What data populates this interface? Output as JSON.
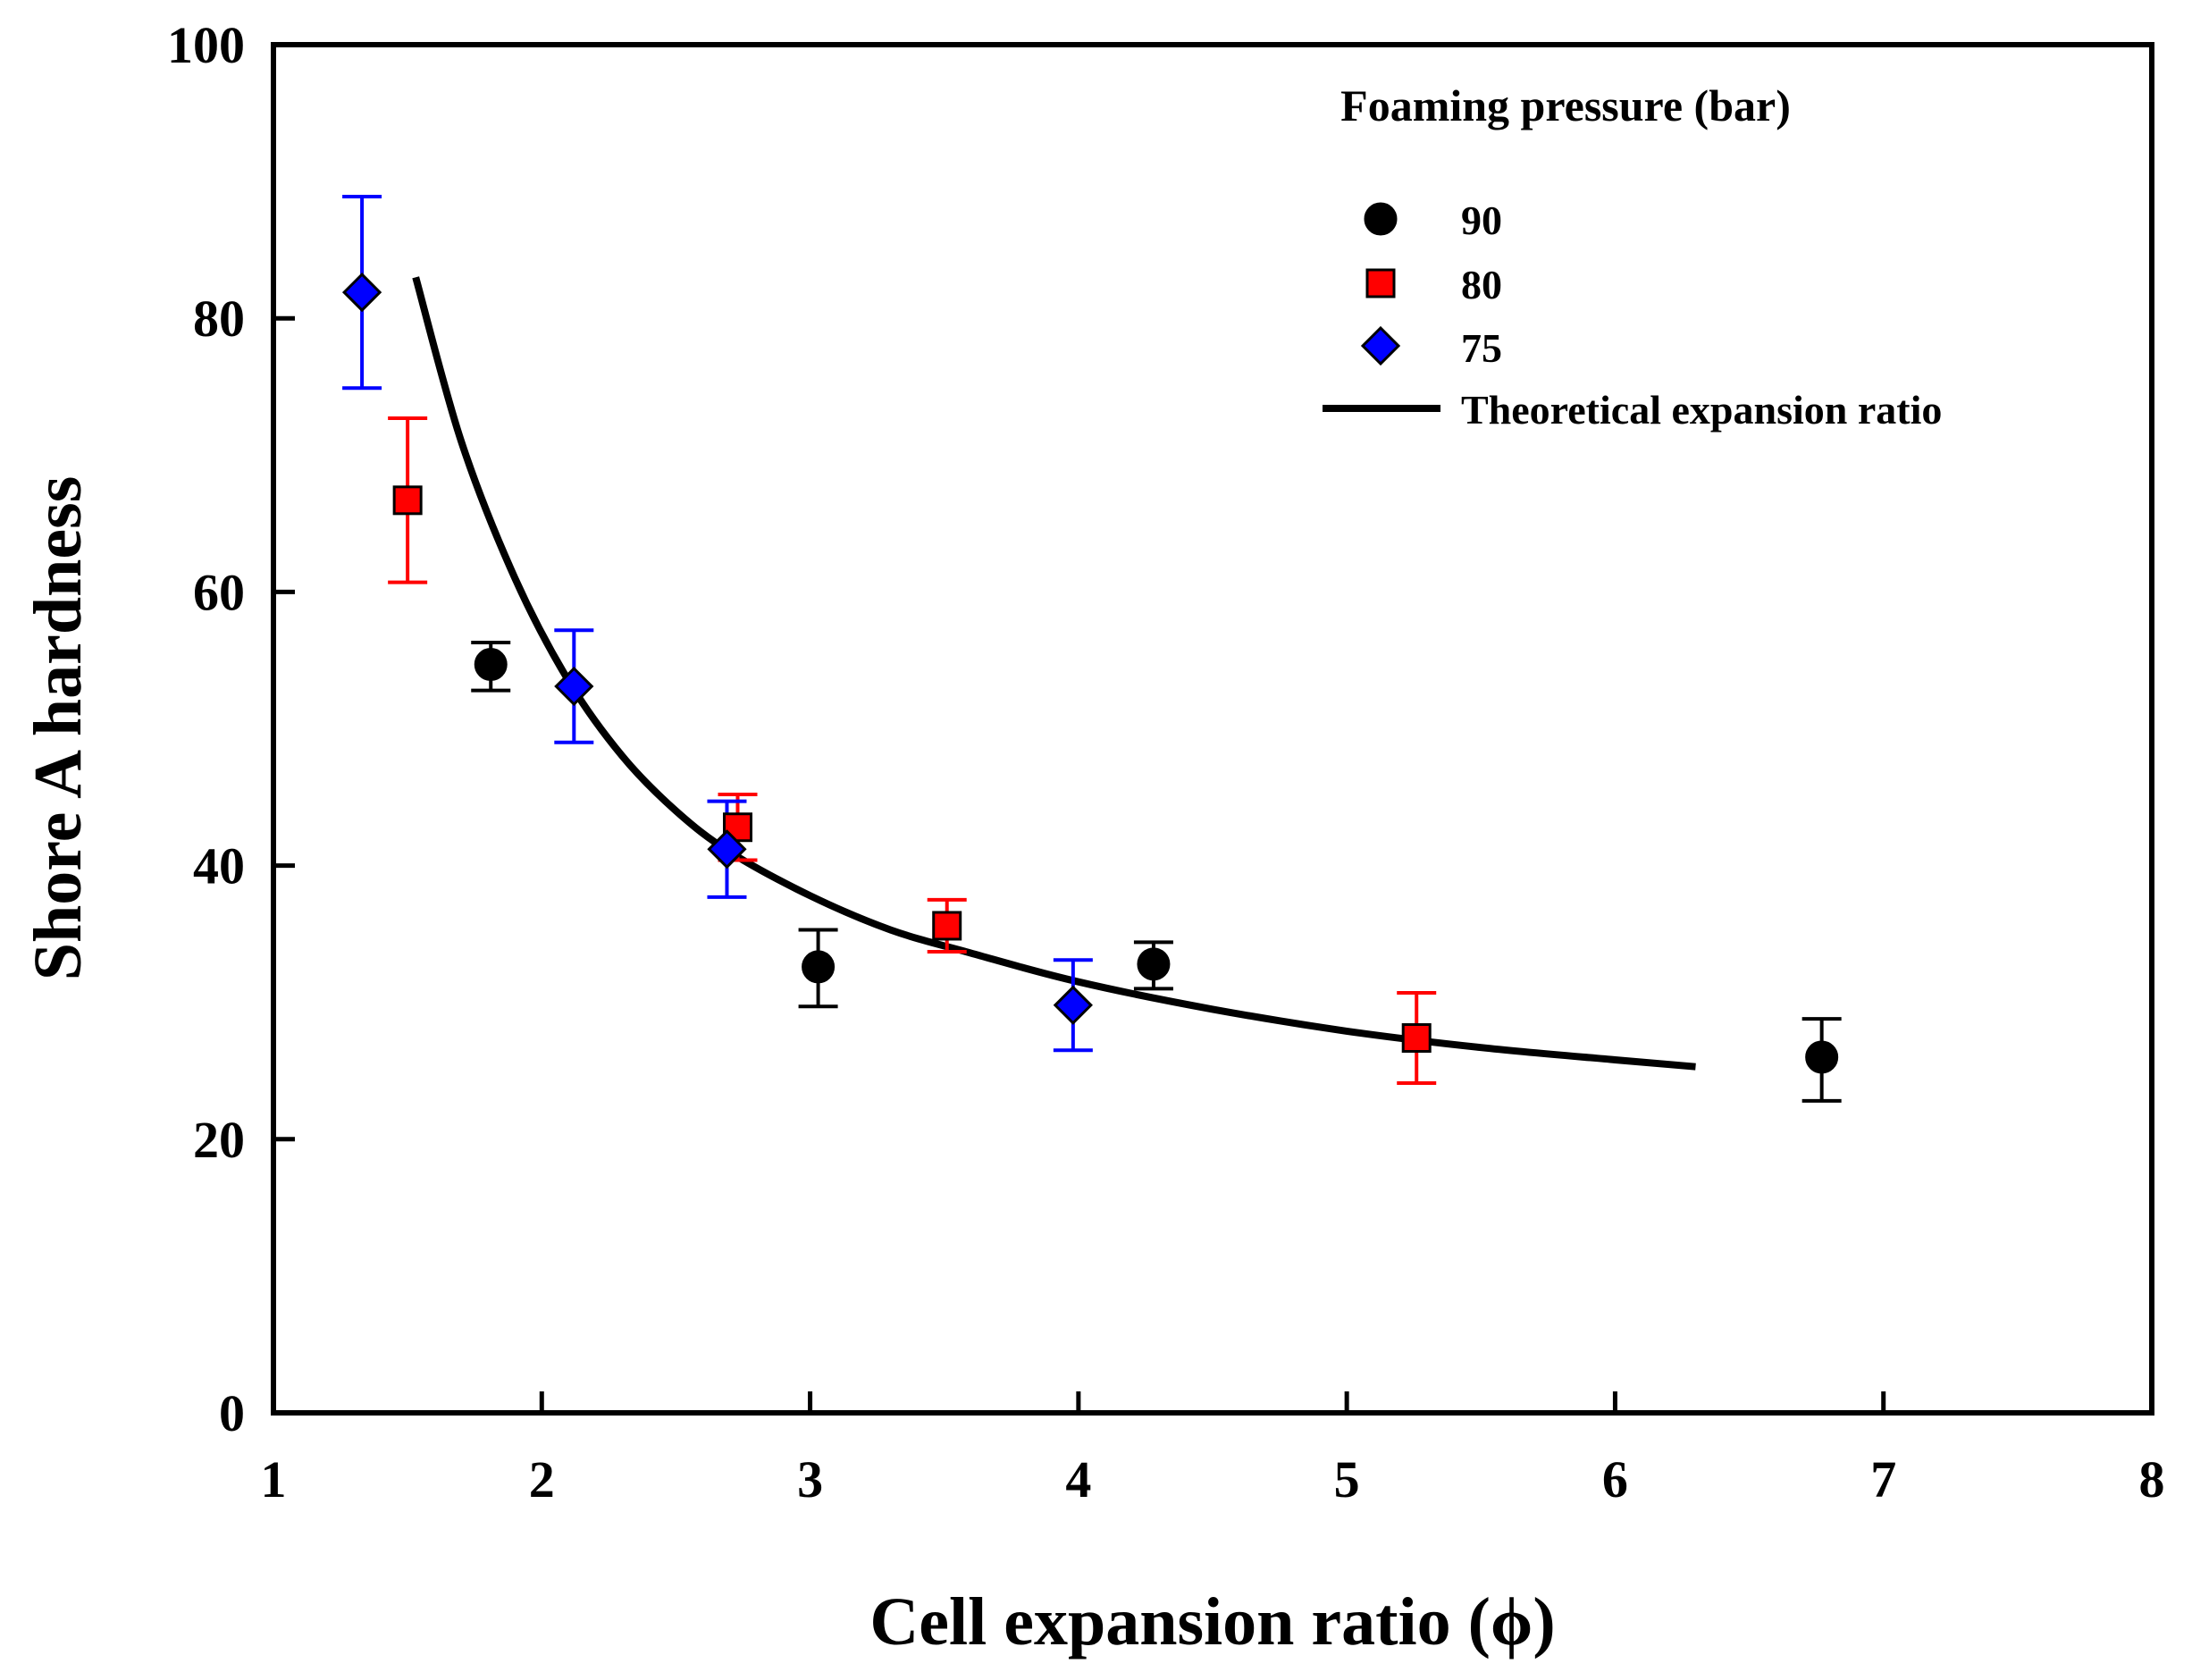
{
  "chart_data": {
    "type": "scatter",
    "title": "",
    "xlabel": "Cell expansion ratio (ϕ)",
    "ylabel": "Shore A hardness",
    "xlim": [
      1,
      8
    ],
    "ylim": [
      0,
      100
    ],
    "x_ticks": [
      "1",
      "2",
      "3",
      "4",
      "5",
      "6",
      "7",
      "8"
    ],
    "y_ticks": [
      "0",
      "20",
      "40",
      "60",
      "80",
      "100"
    ],
    "grid": false,
    "legend": {
      "title": "Foaming pressure (bar)",
      "position": "top-right",
      "entries": [
        "90",
        "80",
        "75",
        "Theoretical expansion ratio"
      ]
    },
    "series": [
      {
        "name": "90",
        "marker": "circle",
        "color": "#000000",
        "points": [
          {
            "x": 1.81,
            "y": 54.7,
            "err_lo": 1.9,
            "err_hi": 1.6
          },
          {
            "x": 3.03,
            "y": 32.6,
            "err_lo": 2.9,
            "err_hi": 2.7
          },
          {
            "x": 4.28,
            "y": 32.8,
            "err_lo": 1.8,
            "err_hi": 1.6
          },
          {
            "x": 6.77,
            "y": 26.0,
            "err_lo": 3.2,
            "err_hi": 2.8
          }
        ]
      },
      {
        "name": "80",
        "marker": "square",
        "color": "#ff0000",
        "points": [
          {
            "x": 1.5,
            "y": 66.7,
            "err_lo": 6.0,
            "err_hi": 6.0
          },
          {
            "x": 2.73,
            "y": 42.8,
            "err_lo": 2.4,
            "err_hi": 2.4
          },
          {
            "x": 3.51,
            "y": 35.6,
            "err_lo": 1.9,
            "err_hi": 1.9
          },
          {
            "x": 5.26,
            "y": 27.4,
            "err_lo": 3.3,
            "err_hi": 3.3
          }
        ]
      },
      {
        "name": "75",
        "marker": "diamond",
        "color": "#0000ff",
        "points": [
          {
            "x": 1.33,
            "y": 81.9,
            "err_lo": 7.0,
            "err_hi": 7.0
          },
          {
            "x": 2.12,
            "y": 53.1,
            "err_lo": 4.1,
            "err_hi": 4.1
          },
          {
            "x": 2.69,
            "y": 41.2,
            "err_lo": 3.5,
            "err_hi": 3.5
          },
          {
            "x": 3.98,
            "y": 29.8,
            "err_lo": 3.3,
            "err_hi": 3.3
          }
        ]
      },
      {
        "name": "Theoretical expansion ratio",
        "type": "line",
        "color": "#000000",
        "x": [
          1.53,
          1.7,
          1.9,
          2.1,
          2.3,
          2.5,
          2.7,
          3.0,
          3.3,
          3.6,
          4.0,
          4.5,
          5.0,
          5.5,
          6.0,
          6.3
        ],
        "y": [
          83.0,
          71.0,
          61.0,
          53.5,
          48.0,
          44.0,
          41.0,
          37.8,
          35.3,
          33.6,
          31.5,
          29.5,
          27.9,
          26.7,
          25.8,
          25.3
        ]
      }
    ]
  }
}
